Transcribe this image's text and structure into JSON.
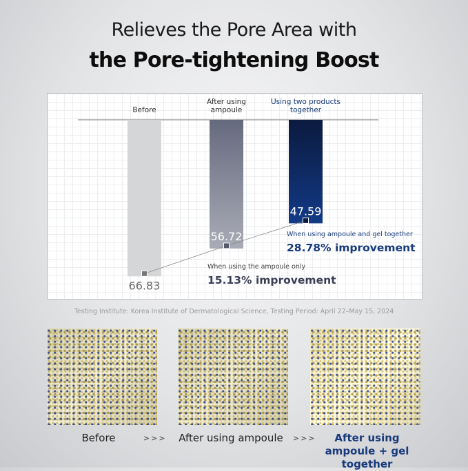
{
  "title_line1": "Relieves the Pore Area with",
  "title_line2": "the Pore-tightening Boost",
  "chart_data": {
    "type": "bar",
    "categories": [
      "Before",
      "After using ampoule",
      "Using two products together"
    ],
    "category_labels": [
      [
        "Before"
      ],
      [
        "After using",
        "ampoule"
      ],
      [
        "Using two products",
        "together"
      ]
    ],
    "values": [
      66.83,
      56.72,
      47.59
    ],
    "value_labels": [
      "66.83",
      "56.72",
      "47.59"
    ],
    "colors": [
      "#d5d6d8",
      "#6e7286",
      "#0f2a64"
    ],
    "annotations": [
      {
        "caption": "When using the ampoule only",
        "value": "15.13% improvement",
        "color": "#3a3f55"
      },
      {
        "caption": "When using ampoule  and gel together",
        "value": "28.78% improvement",
        "color": "#173a7a"
      }
    ],
    "grid": true
  },
  "testing_note": "Testing Institute: Korea Institute of Dermatological Science, Testing Period: April 22–May 15, 2024",
  "photos": {
    "captions": [
      "Before",
      "After using ampoule",
      "After using",
      "ampoule + gel together"
    ],
    "arrow": ">>>"
  }
}
